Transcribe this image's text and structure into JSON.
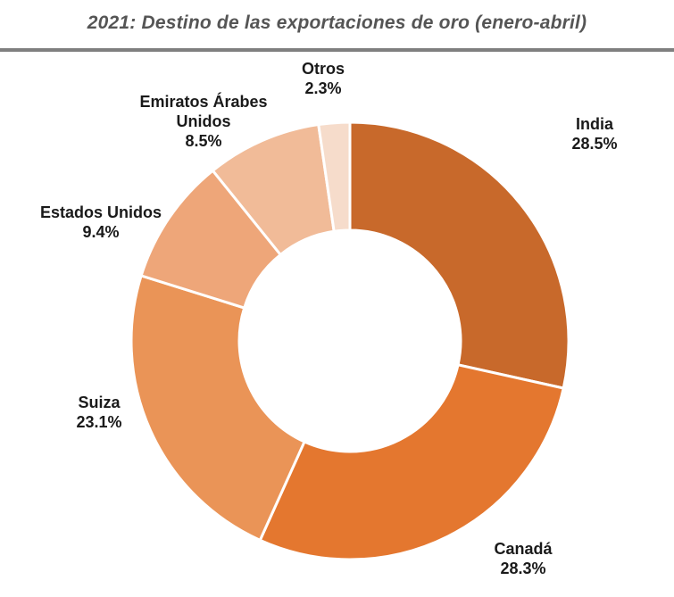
{
  "title": "2021: Destino de las exportaciones de oro (enero-abril)",
  "chart_data": {
    "type": "pie",
    "variant": "donut",
    "title": "2021: Destino de las exportaciones de oro (enero-abril)",
    "unit": "%",
    "slices": [
      {
        "label": "India",
        "value": 28.5,
        "display": "28.5%",
        "color": "#C8692B"
      },
      {
        "label": "Canadá",
        "value": 28.3,
        "display": "28.3%",
        "color": "#E4772F"
      },
      {
        "label": "Suiza",
        "value": 23.1,
        "display": "23.1%",
        "color": "#EA9457"
      },
      {
        "label": "Estados Unidos",
        "value": 9.4,
        "display": "9.4%",
        "color": "#EEA679"
      },
      {
        "label": "Emiratos Árabes Unidos",
        "value": 8.5,
        "display": "8.5%",
        "color": "#F1BB98"
      },
      {
        "label": "Otros",
        "value": 2.3,
        "display": "2.3%",
        "color": "#F6DCCB"
      }
    ]
  }
}
